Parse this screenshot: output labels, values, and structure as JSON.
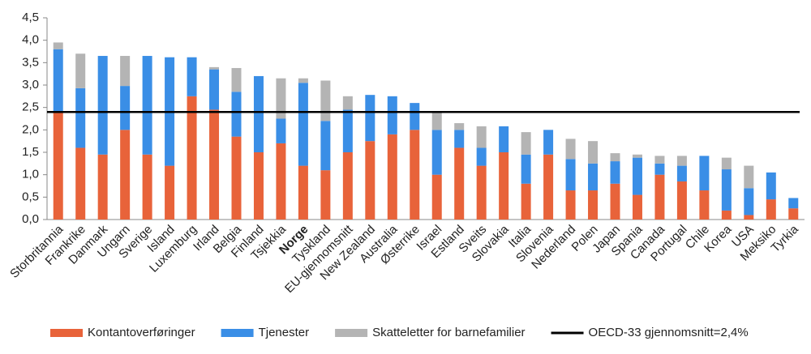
{
  "chart_data": {
    "type": "stacked_bar",
    "categories": [
      "Storbritannia",
      "Frankrike",
      "Danmark",
      "Ungarn",
      "Sverige",
      "Island",
      "Luxemburg",
      "Irland",
      "Belgia",
      "Finland",
      "Tsjekkia",
      "Norge",
      "Tyskland",
      "EU-gjennomsnitt",
      "New Zealand",
      "Australia",
      "Østerrike",
      "Israel",
      "Estland",
      "Sveits",
      "Slovakia",
      "Italia",
      "Slovenia",
      "Nederland",
      "Polen",
      "Japan",
      "Spania",
      "Canada",
      "Portugal",
      "Chile",
      "Korea",
      "USA",
      "Meksiko",
      "Tyrkia"
    ],
    "series": [
      {
        "name": "Kontantoverføringer",
        "color": "#e8633a",
        "values": [
          2.4,
          1.6,
          1.45,
          2.0,
          1.45,
          1.2,
          2.75,
          2.45,
          1.85,
          1.5,
          1.7,
          1.2,
          1.1,
          1.5,
          1.75,
          1.9,
          2.0,
          1.0,
          1.6,
          1.2,
          1.5,
          0.8,
          1.45,
          0.65,
          0.65,
          0.8,
          0.55,
          1.0,
          0.85,
          0.65,
          0.2,
          0.1,
          0.45,
          0.25
        ]
      },
      {
        "name": "Tjenester",
        "color": "#3a8ee6",
        "values": [
          1.4,
          1.33,
          2.2,
          0.98,
          2.2,
          2.42,
          0.87,
          0.9,
          1.0,
          1.7,
          0.55,
          1.85,
          1.1,
          0.95,
          1.03,
          0.85,
          0.6,
          1.0,
          0.4,
          0.4,
          0.58,
          0.65,
          0.55,
          0.7,
          0.6,
          0.5,
          0.83,
          0.25,
          0.35,
          0.77,
          0.92,
          0.6,
          0.6,
          0.23
        ]
      },
      {
        "name": "Skatteletter for barnefamilier",
        "color": "#b4b4b4",
        "values": [
          0.15,
          0.77,
          0,
          0.67,
          0,
          0,
          0,
          0.05,
          0.53,
          0,
          0.9,
          0.1,
          0.9,
          0.3,
          0,
          0,
          0,
          0.4,
          0.15,
          0.48,
          0,
          0.5,
          0,
          0.45,
          0.5,
          0.18,
          0.07,
          0.17,
          0.22,
          0,
          0.26,
          0.5,
          0,
          0
        ]
      }
    ],
    "bold_category_index": 11,
    "reference_line": {
      "value": 2.4,
      "label": "OECD-33 gjennomsnitt=2,4%",
      "color": "#000000"
    },
    "ylim": [
      0,
      4.5
    ],
    "yticks": [
      {
        "value": 0,
        "label": "0,0"
      },
      {
        "value": 0.5,
        "label": "0,5"
      },
      {
        "value": 1,
        "label": "1,0"
      },
      {
        "value": 1.5,
        "label": "1,5"
      },
      {
        "value": 2,
        "label": "2,0"
      },
      {
        "value": 2.5,
        "label": "2,5"
      },
      {
        "value": 3,
        "label": "3,0"
      },
      {
        "value": 3.5,
        "label": "3,5"
      },
      {
        "value": 4,
        "label": "4,0"
      },
      {
        "value": 4.5,
        "label": "4,5"
      }
    ],
    "grid": false
  }
}
